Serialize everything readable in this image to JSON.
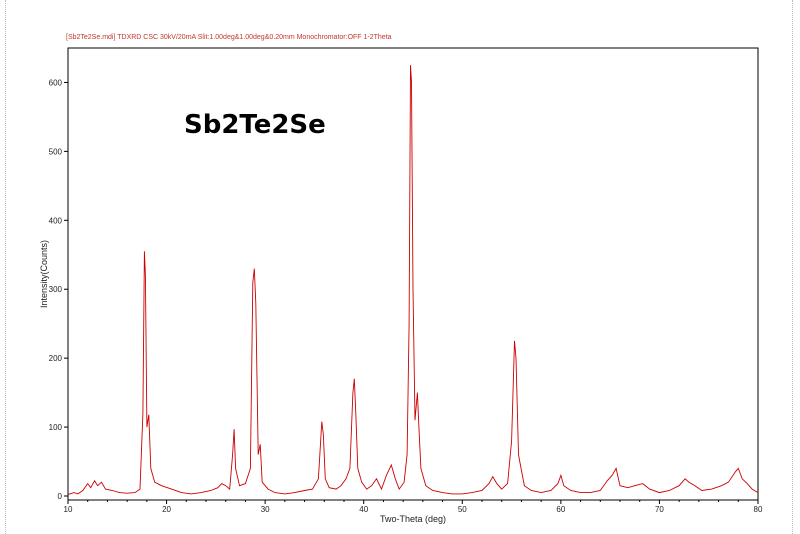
{
  "header": {
    "info": "[Sb2Te2Se.mdi] TDXRD CSC 30kV/20mA Slit:1.00deg&1.00deg&0.20mm Monochromator:OFF 1-2Theta"
  },
  "chart_data": {
    "type": "line",
    "title": "Sb2Te2Se",
    "xlabel": "Two-Theta (deg)",
    "ylabel": "Intensity(Counts)",
    "xlim": [
      10,
      80
    ],
    "ylim": [
      0,
      650
    ],
    "x_ticks": [
      10,
      20,
      30,
      40,
      50,
      60,
      70,
      80
    ],
    "y_ticks": [
      0,
      100,
      200,
      300,
      400,
      500,
      600
    ],
    "grid": false,
    "line_color": "#cc0000",
    "series": [
      {
        "points": [
          [
            10,
            2
          ],
          [
            10.6,
            5
          ],
          [
            11.0,
            3
          ],
          [
            11.5,
            8
          ],
          [
            12.0,
            18
          ],
          [
            12.3,
            12
          ],
          [
            12.7,
            22
          ],
          [
            13.0,
            15
          ],
          [
            13.4,
            20
          ],
          [
            13.8,
            10
          ],
          [
            14.5,
            8
          ],
          [
            15.2,
            5
          ],
          [
            16.0,
            4
          ],
          [
            16.8,
            5
          ],
          [
            17.3,
            10
          ],
          [
            17.6,
            120
          ],
          [
            17.75,
            355
          ],
          [
            17.85,
            320
          ],
          [
            18.0,
            100
          ],
          [
            18.2,
            118
          ],
          [
            18.4,
            40
          ],
          [
            18.8,
            20
          ],
          [
            19.5,
            15
          ],
          [
            20.5,
            10
          ],
          [
            21.5,
            5
          ],
          [
            22.5,
            3
          ],
          [
            23.5,
            5
          ],
          [
            24.5,
            8
          ],
          [
            25.2,
            12
          ],
          [
            25.6,
            18
          ],
          [
            26.0,
            15
          ],
          [
            26.4,
            10
          ],
          [
            26.7,
            60
          ],
          [
            26.85,
            97
          ],
          [
            27.0,
            40
          ],
          [
            27.4,
            15
          ],
          [
            28.0,
            18
          ],
          [
            28.5,
            40
          ],
          [
            28.75,
            310
          ],
          [
            28.9,
            330
          ],
          [
            29.05,
            280
          ],
          [
            29.3,
            60
          ],
          [
            29.5,
            75
          ],
          [
            29.7,
            20
          ],
          [
            30.3,
            10
          ],
          [
            31.0,
            5
          ],
          [
            32.0,
            3
          ],
          [
            33.0,
            5
          ],
          [
            34.0,
            8
          ],
          [
            34.8,
            10
          ],
          [
            35.4,
            25
          ],
          [
            35.75,
            108
          ],
          [
            35.9,
            90
          ],
          [
            36.1,
            25
          ],
          [
            36.5,
            12
          ],
          [
            37.2,
            10
          ],
          [
            37.7,
            15
          ],
          [
            38.2,
            25
          ],
          [
            38.6,
            40
          ],
          [
            38.9,
            150
          ],
          [
            39.05,
            170
          ],
          [
            39.2,
            120
          ],
          [
            39.4,
            40
          ],
          [
            39.8,
            20
          ],
          [
            40.3,
            10
          ],
          [
            40.8,
            15
          ],
          [
            41.3,
            25
          ],
          [
            41.8,
            10
          ],
          [
            42.3,
            30
          ],
          [
            42.8,
            45
          ],
          [
            43.2,
            25
          ],
          [
            43.6,
            10
          ],
          [
            44.1,
            20
          ],
          [
            44.4,
            60
          ],
          [
            44.6,
            250
          ],
          [
            44.75,
            625
          ],
          [
            44.85,
            600
          ],
          [
            45.0,
            300
          ],
          [
            45.2,
            110
          ],
          [
            45.45,
            150
          ],
          [
            45.6,
            100
          ],
          [
            45.8,
            40
          ],
          [
            46.3,
            15
          ],
          [
            47.0,
            8
          ],
          [
            48.0,
            5
          ],
          [
            49.0,
            3
          ],
          [
            50.0,
            3
          ],
          [
            51.0,
            5
          ],
          [
            52.0,
            8
          ],
          [
            52.7,
            18
          ],
          [
            53.1,
            28
          ],
          [
            53.5,
            18
          ],
          [
            54.0,
            10
          ],
          [
            54.6,
            18
          ],
          [
            55.0,
            80
          ],
          [
            55.3,
            225
          ],
          [
            55.45,
            200
          ],
          [
            55.7,
            60
          ],
          [
            55.9,
            45
          ],
          [
            56.3,
            15
          ],
          [
            57.0,
            8
          ],
          [
            58.0,
            5
          ],
          [
            59.0,
            8
          ],
          [
            59.7,
            18
          ],
          [
            60.0,
            30
          ],
          [
            60.3,
            15
          ],
          [
            61.0,
            8
          ],
          [
            62.0,
            5
          ],
          [
            63.0,
            5
          ],
          [
            64.0,
            8
          ],
          [
            64.7,
            22
          ],
          [
            65.2,
            30
          ],
          [
            65.6,
            40
          ],
          [
            66.0,
            15
          ],
          [
            66.8,
            12
          ],
          [
            67.5,
            15
          ],
          [
            68.3,
            18
          ],
          [
            69.0,
            10
          ],
          [
            70.0,
            5
          ],
          [
            71.0,
            8
          ],
          [
            72.0,
            15
          ],
          [
            72.6,
            25
          ],
          [
            73.0,
            20
          ],
          [
            73.6,
            15
          ],
          [
            74.3,
            8
          ],
          [
            75.3,
            10
          ],
          [
            76.3,
            15
          ],
          [
            77.0,
            20
          ],
          [
            77.7,
            35
          ],
          [
            78.0,
            40
          ],
          [
            78.4,
            25
          ],
          [
            78.9,
            18
          ],
          [
            79.4,
            10
          ],
          [
            80.0,
            5
          ]
        ]
      }
    ]
  }
}
